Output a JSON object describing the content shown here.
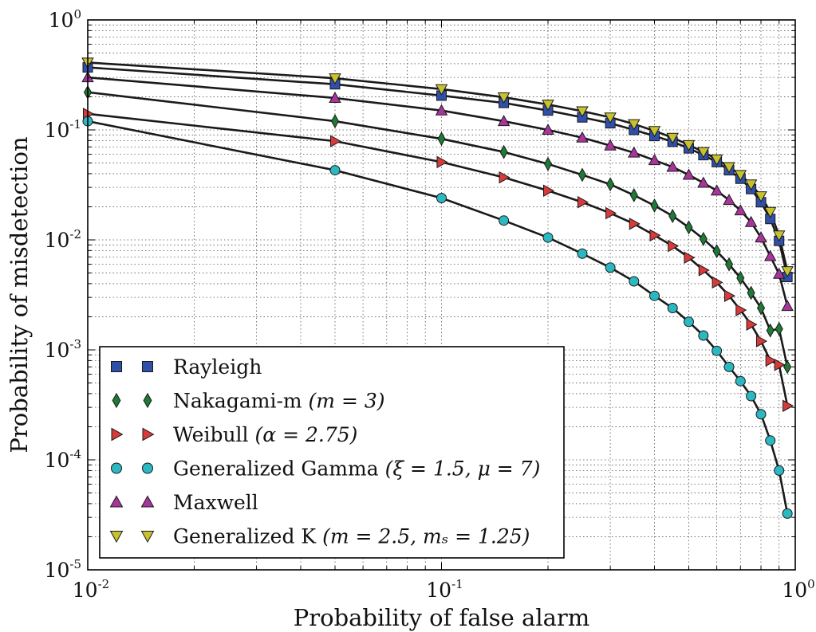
{
  "chart_data": {
    "type": "line",
    "title": "",
    "xlabel": "Probability of false alarm",
    "ylabel": "Probability of misdetection",
    "xscale": "log",
    "yscale": "log",
    "xlim": [
      0.01,
      1
    ],
    "ylim": [
      1e-05,
      1
    ],
    "grid": true,
    "legend_position": "lower-left",
    "x_ticks": [
      {
        "value": 0.01,
        "base": "10",
        "exp": "-2"
      },
      {
        "value": 0.1,
        "base": "10",
        "exp": "-1"
      },
      {
        "value": 1,
        "base": "10",
        "exp": "0"
      }
    ],
    "y_ticks": [
      {
        "value": 1,
        "base": "10",
        "exp": "0"
      },
      {
        "value": 0.1,
        "base": "10",
        "exp": "-1"
      },
      {
        "value": 0.01,
        "base": "10",
        "exp": "-2"
      },
      {
        "value": 0.001,
        "base": "10",
        "exp": "-3"
      },
      {
        "value": 0.0001,
        "base": "10",
        "exp": "-4"
      },
      {
        "value": 1e-05,
        "base": "10",
        "exp": "-5"
      }
    ],
    "x": [
      0.01,
      0.05,
      0.1,
      0.15,
      0.2,
      0.25,
      0.3,
      0.35,
      0.4,
      0.45,
      0.5,
      0.55,
      0.6,
      0.65,
      0.7,
      0.75,
      0.8,
      0.85,
      0.9,
      0.95
    ],
    "series": [
      {
        "name": "Rayleigh",
        "math": "",
        "marker": "square",
        "color": "#2f4fa8",
        "values": [
          0.37,
          0.26,
          0.205,
          0.176,
          0.15,
          0.13,
          0.115,
          0.1,
          0.088,
          0.078,
          0.068,
          0.059,
          0.051,
          0.043,
          0.036,
          0.029,
          0.022,
          0.0155,
          0.0098,
          0.0046
        ]
      },
      {
        "name": "Nakagami-m ",
        "math": "(m = 3)",
        "marker": "diamond",
        "color": "#1f7a35",
        "values": [
          0.22,
          0.12,
          0.083,
          0.063,
          0.049,
          0.039,
          0.032,
          0.0255,
          0.0205,
          0.0165,
          0.013,
          0.0102,
          0.0079,
          0.006,
          0.0045,
          0.0033,
          0.0024,
          0.0015,
          0.00155,
          0.0007
        ]
      },
      {
        "name": "Weibull ",
        "math": "(α = 2.75)",
        "marker": "triangle-right",
        "color": "#d63a3a",
        "values": [
          0.14,
          0.079,
          0.051,
          0.037,
          0.028,
          0.022,
          0.0175,
          0.014,
          0.011,
          0.0088,
          0.0069,
          0.0053,
          0.0041,
          0.0031,
          0.0023,
          0.0017,
          0.0012,
          0.0008,
          0.00073,
          0.00031
        ]
      },
      {
        "name": "Generalized Gamma ",
        "math": "(ξ = 1.5, μ = 7)",
        "marker": "circle",
        "color": "#2bb8c0",
        "values": [
          0.12,
          0.043,
          0.024,
          0.015,
          0.0105,
          0.0075,
          0.0056,
          0.0042,
          0.0031,
          0.0024,
          0.0018,
          0.00135,
          0.00098,
          0.0007,
          0.00052,
          0.00038,
          0.00026,
          0.00015,
          8e-05,
          3.25e-05
        ]
      },
      {
        "name": "Maxwell",
        "math": "",
        "marker": "triangle-up",
        "color": "#a8359c",
        "values": [
          0.3,
          0.195,
          0.15,
          0.12,
          0.1,
          0.085,
          0.072,
          0.062,
          0.053,
          0.046,
          0.039,
          0.033,
          0.028,
          0.023,
          0.0185,
          0.0145,
          0.0105,
          0.0071,
          0.0049,
          0.0025
        ]
      },
      {
        "name": "Generalized K ",
        "math": "(m = 2.5, mₛ = 1.25)",
        "marker": "triangle-down",
        "color": "#c8c22e",
        "values": [
          0.41,
          0.295,
          0.235,
          0.198,
          0.17,
          0.148,
          0.13,
          0.113,
          0.098,
          0.085,
          0.073,
          0.063,
          0.054,
          0.046,
          0.039,
          0.032,
          0.025,
          0.018,
          0.011,
          0.0052
        ]
      }
    ]
  }
}
